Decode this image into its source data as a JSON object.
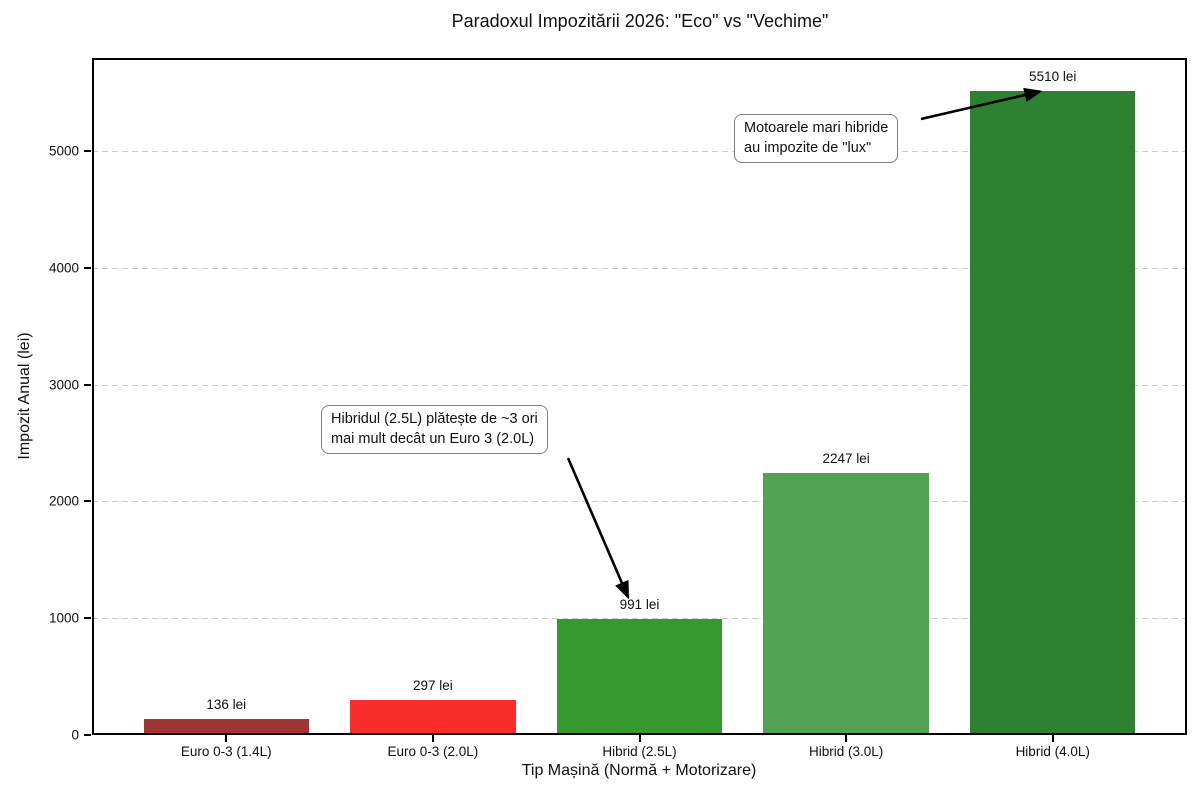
{
  "title": "Paradoxul Impozitării 2026: \"Eco\" vs \"Vechime\"",
  "chart_data": {
    "type": "bar",
    "title": "Paradoxul Impozitării 2026: \"Eco\" vs \"Vechime\"",
    "xlabel": "Tip Mașină (Normă + Motorizare)",
    "ylabel": "Impozit Anual (lei)",
    "categories": [
      "Euro 0-3 (1.4L)",
      "Euro 0-3 (2.0L)",
      "Hibrid (2.5L)",
      "Hibrid (3.0L)",
      "Hibrid (4.0L)"
    ],
    "values": [
      136,
      297,
      991,
      2247,
      5510
    ],
    "value_labels": [
      "136 lei",
      "297 lei",
      "991 lei",
      "2247 lei",
      "5510 lei"
    ],
    "bar_colors": [
      "#9e3434",
      "#fb2c2c",
      "#35992f",
      "#52a254",
      "#2f8132"
    ],
    "yticks": [
      0,
      1000,
      2000,
      3000,
      4000,
      5000
    ],
    "ylim": [
      0,
      5796
    ],
    "grid": "horizontal-dashed",
    "legend": "none",
    "annotations": [
      {
        "line1": "Motoarele mari hibride",
        "line2": "au impozite de \"lux\"",
        "target": "Hibrid (4.0L) bar top"
      },
      {
        "line1": "Hibridul (2.5L) plătește de ~3 ori",
        "line2": "mai mult decât un Euro 3 (2.0L)",
        "target": "Hibrid (2.5L) value label"
      }
    ]
  },
  "colors": {
    "grid": "#cccccc",
    "text": "#111111",
    "annotation_border": "#808080",
    "arrow": "#000000",
    "background": "#ffffff"
  }
}
